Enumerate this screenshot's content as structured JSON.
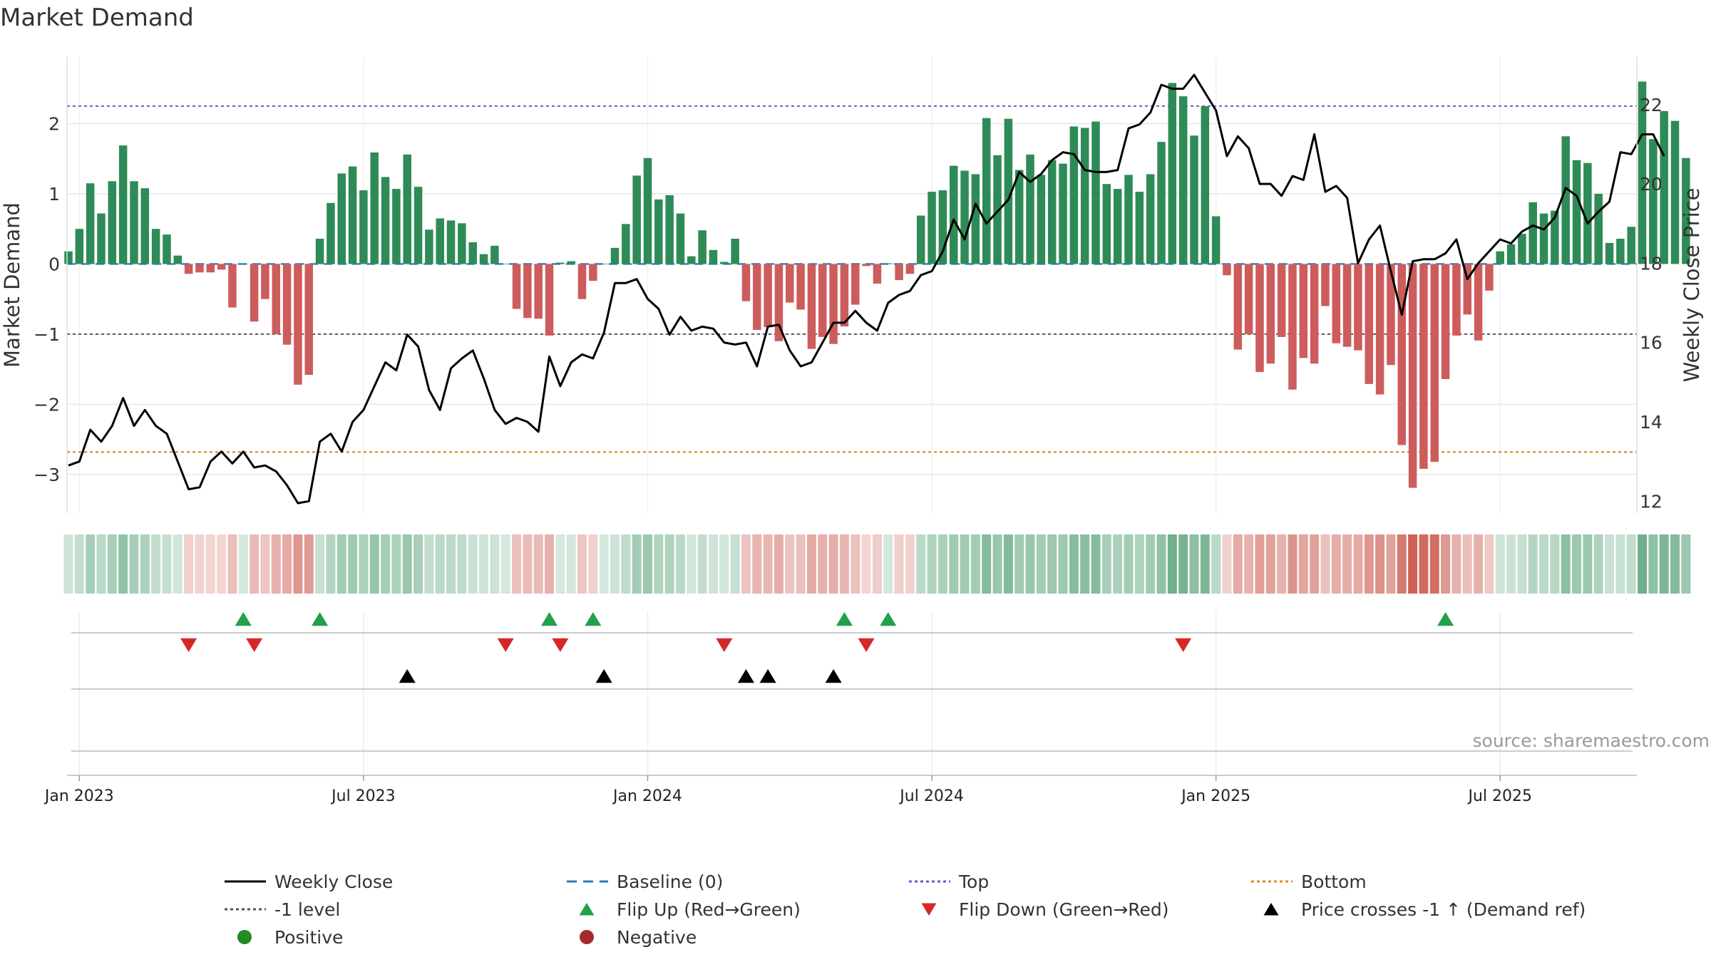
{
  "chart_data": {
    "type": "bar",
    "title": "Market Demand",
    "source": "source: sharemaestro.com",
    "y_left": {
      "label": "Market Demand",
      "ylim": [
        -3.55,
        2.95
      ],
      "ticks": [
        2,
        1,
        0,
        -1,
        -2,
        -3
      ]
    },
    "y_right": {
      "label": "Weekly Close Price",
      "ylim": [
        11.7,
        23.2
      ],
      "ticks": [
        12,
        14,
        16,
        18,
        20,
        22
      ]
    },
    "x_ticks": [
      "Jan 2023",
      "Jul 2023",
      "Jan 2024",
      "Jul 2024",
      "Jan 2025",
      "Jul 2025"
    ],
    "x_tick_weeks": [
      0,
      26,
      52,
      78,
      104,
      130
    ],
    "first_week": -1,
    "reference_lines": {
      "top": 2.25,
      "minus_one": -1,
      "bottom": -2.68,
      "baseline": 0
    },
    "demand": [
      0.18,
      0.5,
      1.15,
      0.72,
      1.18,
      1.69,
      1.18,
      1.08,
      0.5,
      0.42,
      0.12,
      -0.14,
      -0.12,
      -0.12,
      -0.08,
      -0.62,
      0,
      -0.82,
      -0.5,
      -1.0,
      -1.15,
      -1.72,
      -1.58,
      0.36,
      0.87,
      1.29,
      1.39,
      1.05,
      1.59,
      1.24,
      1.07,
      1.56,
      1.1,
      0.49,
      0.65,
      0.62,
      0.58,
      0.31,
      0.14,
      0.26,
      0,
      -0.64,
      -0.77,
      -0.78,
      -1.02,
      0.02,
      0.04,
      -0.5,
      -0.24,
      0,
      0.23,
      0.57,
      1.26,
      1.51,
      0.92,
      0.98,
      0.72,
      0.11,
      0.48,
      0.2,
      0.03,
      0.36,
      -0.53,
      -0.94,
      -0.9,
      -1.1,
      -0.55,
      -0.65,
      -1.21,
      -1.04,
      -1.14,
      -0.89,
      -0.58,
      -0.03,
      -0.28,
      0.01,
      -0.23,
      -0.14,
      0.69,
      1.03,
      1.05,
      1.4,
      1.33,
      1.28,
      2.08,
      1.55,
      2.07,
      1.34,
      1.56,
      1.27,
      1.48,
      1.43,
      1.96,
      1.94,
      2.03,
      1.14,
      1.07,
      1.27,
      1.03,
      1.28,
      1.74,
      2.58,
      2.39,
      1.83,
      2.25,
      0.68,
      -0.16,
      -1.22,
      -1.0,
      -1.54,
      -1.42,
      -1.04,
      -1.79,
      -1.34,
      -1.42,
      -0.6,
      -1.13,
      -1.18,
      -1.23,
      -1.71,
      -1.86,
      -1.44,
      -2.58,
      -3.19,
      -2.92,
      -2.82,
      -1.64,
      -1.02,
      -0.72,
      -1.09,
      -0.38,
      0.18,
      0.28,
      0.43,
      0.88,
      0.72,
      0.76,
      1.82,
      1.48,
      1.44,
      1.0,
      0.3,
      0.36,
      0.53,
      2.6,
      1.78,
      2.18,
      2.04,
      1.51
    ],
    "price": [
      12.9,
      13.0,
      13.8,
      13.5,
      13.9,
      14.6,
      13.9,
      14.3,
      13.9,
      13.7,
      13.0,
      12.3,
      12.35,
      13.0,
      13.25,
      12.95,
      13.25,
      12.85,
      12.9,
      12.75,
      12.4,
      11.95,
      12.0,
      13.5,
      13.7,
      13.25,
      14.0,
      14.3,
      14.9,
      15.5,
      15.3,
      16.2,
      15.9,
      14.8,
      14.3,
      15.35,
      15.6,
      15.8,
      15.1,
      14.3,
      13.95,
      14.1,
      14.0,
      13.75,
      15.65,
      14.9,
      15.5,
      15.7,
      15.6,
      16.25,
      17.5,
      17.5,
      17.6,
      17.1,
      16.85,
      16.2,
      16.65,
      16.3,
      16.4,
      16.35,
      16.0,
      15.95,
      16.0,
      15.4,
      16.4,
      16.45,
      15.8,
      15.4,
      15.5,
      16.0,
      16.5,
      16.5,
      16.8,
      16.5,
      16.3,
      17.0,
      17.2,
      17.3,
      17.7,
      17.8,
      18.3,
      19.1,
      18.6,
      19.5,
      19.0,
      19.3,
      19.6,
      20.3,
      20.05,
      20.25,
      20.6,
      20.8,
      20.75,
      20.35,
      20.3,
      20.3,
      20.35,
      21.4,
      21.5,
      21.8,
      22.5,
      22.4,
      22.4,
      22.75,
      22.3,
      21.85,
      20.7,
      21.2,
      20.9,
      20.0,
      20.0,
      19.7,
      20.2,
      20.1,
      21.25,
      19.8,
      19.95,
      19.65,
      18.0,
      18.6,
      18.95,
      17.8,
      16.7,
      18.05,
      18.1,
      18.1,
      18.25,
      18.6,
      17.6,
      18.0,
      18.3,
      18.6,
      18.5,
      18.8,
      18.95,
      18.85,
      19.15,
      19.9,
      19.7,
      19.0,
      19.3,
      19.55,
      20.8,
      20.75,
      21.25,
      21.25,
      20.7
    ],
    "flip_up_weeks": [
      15,
      22,
      43,
      47,
      70,
      74,
      125
    ],
    "flip_down_weeks": [
      10,
      16,
      39,
      44,
      59,
      72,
      101
    ],
    "cross_weeks": [
      30,
      48,
      61,
      63,
      69
    ],
    "legend": [
      {
        "label": "Weekly Close",
        "type": "line",
        "color": "#000000"
      },
      {
        "label": "Baseline (0)",
        "type": "dash",
        "color": "#2b7bb9"
      },
      {
        "label": "Top",
        "type": "dot",
        "color": "#6a5acd"
      },
      {
        "label": "Bottom",
        "type": "dot",
        "color": "#e08a1e"
      },
      {
        "label": "-1 level",
        "type": "dot",
        "color": "#555555"
      },
      {
        "label": "Flip Up (Red→Green)",
        "type": "tri-up",
        "color": "#22a04a"
      },
      {
        "label": "Flip Down (Green→Red)",
        "type": "tri-down",
        "color": "#d62728"
      },
      {
        "label": "Price crosses -1 ↑ (Demand ref)",
        "type": "tri-up",
        "color": "#000000"
      },
      {
        "label": "Positive",
        "type": "circle",
        "color": "#228b22"
      },
      {
        "label": "Negative",
        "type": "circle",
        "color": "#a52a2a"
      }
    ],
    "colors": {
      "positive": "#2e8b57",
      "negative": "#cd5c5c",
      "grid": "#e6e6e6",
      "track": "#cccccc"
    }
  }
}
